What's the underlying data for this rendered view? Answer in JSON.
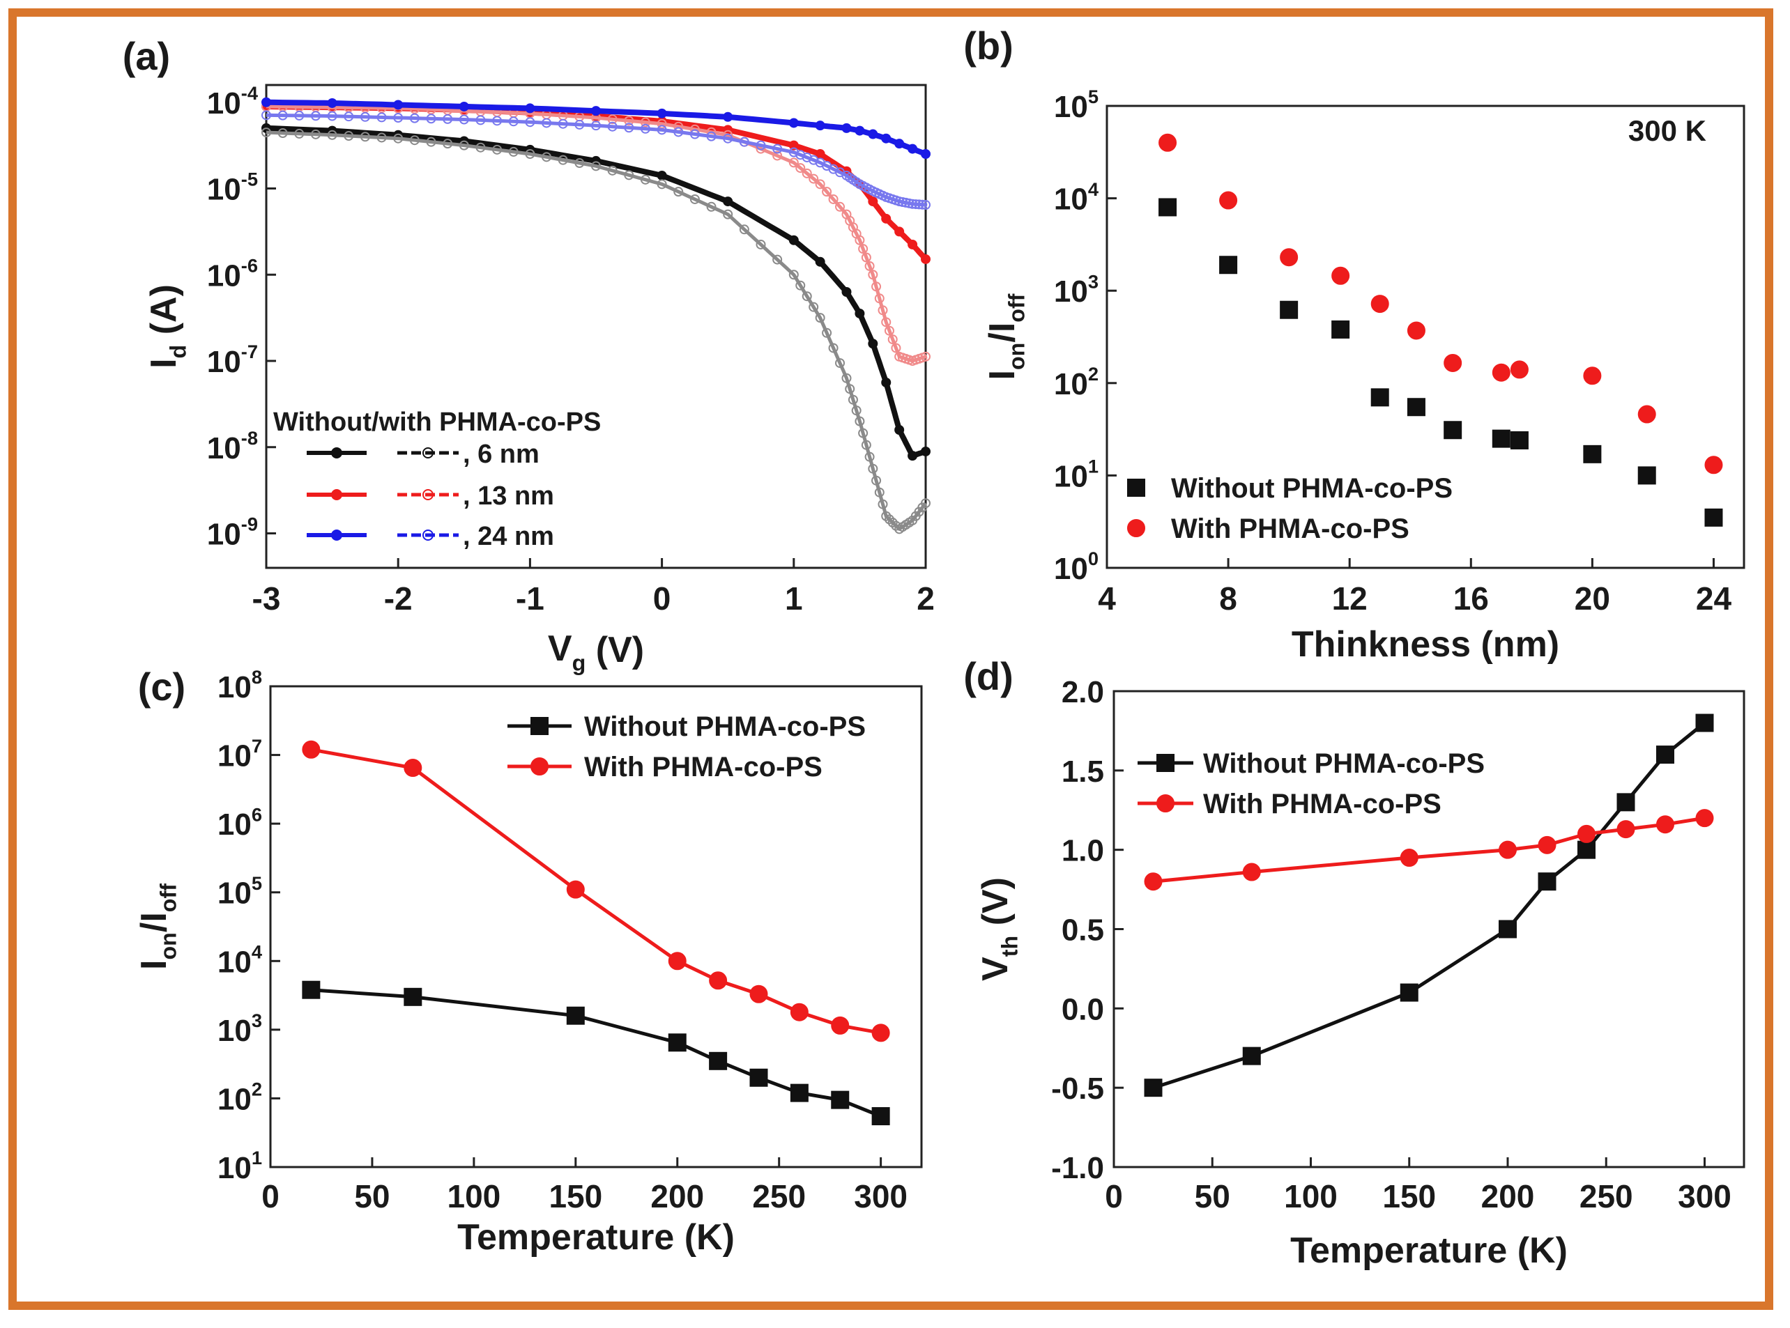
{
  "colors": {
    "frame": "#d9762c",
    "black": "#111111",
    "red": "#ee1c1c",
    "blue": "#1a1ae6",
    "lightRed": "#f08a8a",
    "gray": "#8a8a8a",
    "lightBlue": "#7878ee"
  },
  "chart_data": [
    {
      "panel": "(a)",
      "type": "line",
      "xlabel": "V",
      "xlabel_sub": "g",
      "xlabel_unit": " (V)",
      "ylabel": "I",
      "ylabel_sub": "d",
      "ylabel_unit": " (A)",
      "yscale": "log",
      "xlim": [
        -3,
        2
      ],
      "ylim_exp": [
        -9.4,
        -3.8
      ],
      "xticks": [
        "-3",
        "-2",
        "-1",
        "0",
        "1",
        "2"
      ],
      "xtick_values": [
        -3,
        -2,
        -1,
        0,
        1,
        2
      ],
      "yticks": [
        {
          "base": "10",
          "exp": "-4"
        },
        {
          "base": "10",
          "exp": "-5"
        },
        {
          "base": "10",
          "exp": "-6"
        },
        {
          "base": "10",
          "exp": "-7"
        },
        {
          "base": "10",
          "exp": "-8"
        },
        {
          "base": "10",
          "exp": "-9"
        }
      ],
      "ytick_exps": [
        -4,
        -5,
        -6,
        -7,
        -8,
        -9
      ],
      "x": [
        -3,
        -2.5,
        -2,
        -1.5,
        -1,
        -0.5,
        0,
        0.5,
        1,
        1.2,
        1.4,
        1.5,
        1.6,
        1.7,
        1.8,
        1.9,
        2
      ],
      "series": [
        {
          "name": "6 nm without",
          "color": "black",
          "style": "solid",
          "log_values": [
            -4.3,
            -4.33,
            -4.38,
            -4.45,
            -4.55,
            -4.68,
            -4.85,
            -5.15,
            -5.6,
            -5.85,
            -6.2,
            -6.45,
            -6.8,
            -7.25,
            -7.8,
            -8.1,
            -8.05
          ]
        },
        {
          "name": "6 nm with",
          "color": "gray",
          "style": "open",
          "log_values": [
            -4.35,
            -4.38,
            -4.42,
            -4.5,
            -4.6,
            -4.74,
            -4.95,
            -5.3,
            -6.0,
            -6.5,
            -7.2,
            -7.7,
            -8.25,
            -8.8,
            -8.95,
            -8.85,
            -8.65
          ]
        },
        {
          "name": "13 nm without",
          "color": "red",
          "style": "solid",
          "log_values": [
            -4.05,
            -4.06,
            -4.07,
            -4.09,
            -4.12,
            -4.16,
            -4.22,
            -4.32,
            -4.5,
            -4.6,
            -4.8,
            -4.95,
            -5.15,
            -5.35,
            -5.5,
            -5.65,
            -5.82
          ]
        },
        {
          "name": "13 nm with",
          "color": "lightRed",
          "style": "open",
          "log_values": [
            -4.05,
            -4.06,
            -4.07,
            -4.1,
            -4.13,
            -4.18,
            -4.25,
            -4.38,
            -4.7,
            -4.95,
            -5.3,
            -5.6,
            -6.0,
            -6.55,
            -6.95,
            -7.0,
            -6.95
          ]
        },
        {
          "name": "24 nm without",
          "color": "blue",
          "style": "solid",
          "log_values": [
            -4.0,
            -4.01,
            -4.03,
            -4.05,
            -4.07,
            -4.1,
            -4.13,
            -4.17,
            -4.24,
            -4.27,
            -4.3,
            -4.33,
            -4.37,
            -4.42,
            -4.48,
            -4.54,
            -4.6
          ]
        },
        {
          "name": "24 nm with",
          "color": "lightBlue",
          "style": "open",
          "log_values": [
            -4.15,
            -4.16,
            -4.18,
            -4.2,
            -4.23,
            -4.27,
            -4.32,
            -4.42,
            -4.58,
            -4.7,
            -4.85,
            -4.95,
            -5.03,
            -5.1,
            -5.15,
            -5.18,
            -5.19
          ]
        }
      ],
      "legend_title": "Without/with PHMA-co-PS",
      "legend_entries": [
        ", 6 nm",
        ", 13 nm",
        ",  24 nm"
      ]
    },
    {
      "panel": "(b)",
      "type": "scatter",
      "xlabel": "Thinkness (nm)",
      "ylabel": "I",
      "ylabel_sub1": "on",
      "ylabel_mid": "/I",
      "ylabel_sub2": "off",
      "yscale": "log",
      "xlim": [
        4,
        25
      ],
      "ylim_exp": [
        0,
        5
      ],
      "xticks": [
        "4",
        "8",
        "12",
        "16",
        "20",
        "24"
      ],
      "xtick_values": [
        4,
        8,
        12,
        16,
        20,
        24
      ],
      "yticks": [
        {
          "base": "10",
          "exp": "5"
        },
        {
          "base": "10",
          "exp": "4"
        },
        {
          "base": "10",
          "exp": "3"
        },
        {
          "base": "10",
          "exp": "2"
        },
        {
          "base": "10",
          "exp": "1"
        },
        {
          "base": "10",
          "exp": "0"
        }
      ],
      "ytick_exps": [
        5,
        4,
        3,
        2,
        1,
        0
      ],
      "annotation": "300 K",
      "series": [
        {
          "name": "Without PHMA-co-PS",
          "color": "black",
          "marker": "square",
          "x": [
            6,
            8,
            10,
            11.7,
            13,
            14.2,
            15.4,
            17,
            17.6,
            20,
            21.8,
            24
          ],
          "y": [
            8000,
            1900,
            620,
            380,
            70,
            55,
            31,
            25,
            24,
            17,
            10,
            3.5
          ]
        },
        {
          "name": "With PHMA-co-PS",
          "color": "red",
          "marker": "circle",
          "x": [
            6,
            8,
            10,
            11.7,
            13,
            14.2,
            15.4,
            17,
            17.6,
            20,
            21.8,
            24
          ],
          "y": [
            40000,
            9500,
            2300,
            1450,
            720,
            370,
            165,
            130,
            140,
            120,
            46,
            13
          ]
        }
      ],
      "legend": [
        "Without PHMA-co-PS",
        "With PHMA-co-PS"
      ]
    },
    {
      "panel": "(c)",
      "type": "line",
      "xlabel": "Temperature (K)",
      "ylabel": "I",
      "ylabel_sub1": "on",
      "ylabel_mid": "/I",
      "ylabel_sub2": "off",
      "yscale": "log",
      "xlim": [
        0,
        320
      ],
      "ylim_exp": [
        1,
        8
      ],
      "xticks": [
        "0",
        "50",
        "100",
        "150",
        "200",
        "250",
        "300"
      ],
      "xtick_values": [
        0,
        50,
        100,
        150,
        200,
        250,
        300
      ],
      "yticks": [
        {
          "base": "10",
          "exp": "8"
        },
        {
          "base": "10",
          "exp": "7"
        },
        {
          "base": "10",
          "exp": "6"
        },
        {
          "base": "10",
          "exp": "5"
        },
        {
          "base": "10",
          "exp": "4"
        },
        {
          "base": "10",
          "exp": "3"
        },
        {
          "base": "10",
          "exp": "2"
        },
        {
          "base": "10",
          "exp": "1"
        }
      ],
      "ytick_exps": [
        8,
        7,
        6,
        5,
        4,
        3,
        2,
        1
      ],
      "x": [
        20,
        70,
        150,
        200,
        220,
        240,
        260,
        280,
        300
      ],
      "series": [
        {
          "name": "Without PHMA-co-PS",
          "color": "black",
          "marker": "square",
          "values": [
            3800,
            3000,
            1600,
            650,
            350,
            200,
            120,
            95,
            55
          ]
        },
        {
          "name": "With  PHMA-co-PS",
          "color": "red",
          "marker": "circle",
          "values": [
            12000000,
            6500000,
            110000,
            10000,
            5200,
            3300,
            1800,
            1150,
            900
          ]
        }
      ],
      "legend": [
        "Without PHMA-co-PS",
        "With  PHMA-co-PS"
      ]
    },
    {
      "panel": "(d)",
      "type": "line",
      "xlabel": "Temperature (K)",
      "ylabel": "V",
      "ylabel_sub": "th",
      "ylabel_unit": " (V)",
      "xlim": [
        0,
        320
      ],
      "ylim": [
        -1.0,
        2.0
      ],
      "xticks": [
        "0",
        "50",
        "100",
        "150",
        "200",
        "250",
        "300"
      ],
      "xtick_values": [
        0,
        50,
        100,
        150,
        200,
        250,
        300
      ],
      "yticks": [
        "2.0",
        "1.5",
        "1.0",
        "0.5",
        "0.0",
        "-0.5",
        "-1.0"
      ],
      "ytick_values": [
        2.0,
        1.5,
        1.0,
        0.5,
        0.0,
        -0.5,
        -1.0
      ],
      "x": [
        20,
        70,
        150,
        200,
        220,
        240,
        260,
        280,
        300
      ],
      "series": [
        {
          "name": "Without PHMA-co-PS",
          "color": "black",
          "marker": "square",
          "values": [
            -0.5,
            -0.3,
            0.1,
            0.5,
            0.8,
            1.0,
            1.3,
            1.6,
            1.8
          ]
        },
        {
          "name": "With PHMA-co-PS",
          "color": "red",
          "marker": "circle",
          "values": [
            0.8,
            0.86,
            0.95,
            1.0,
            1.03,
            1.1,
            1.13,
            1.16,
            1.2
          ]
        }
      ],
      "legend": [
        "Without PHMA-co-PS",
        "With PHMA-co-PS"
      ]
    }
  ]
}
